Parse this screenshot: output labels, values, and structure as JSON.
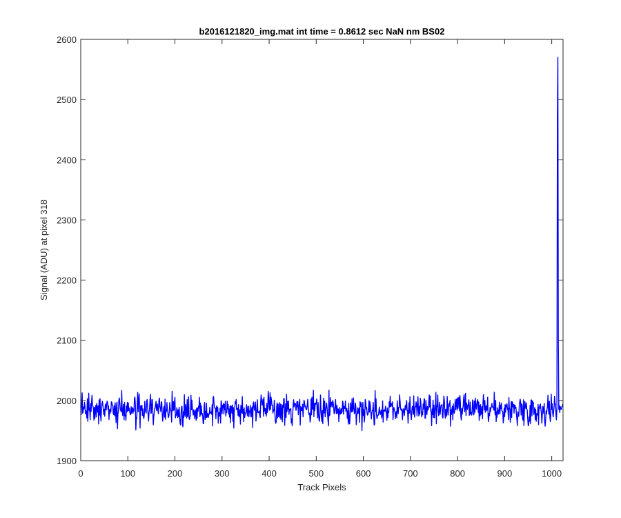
{
  "chart_data": {
    "type": "line",
    "title": "b2016121820_img.mat int time = 0.8612 sec  NaN nm BS02",
    "xlabel": "Track Pixels",
    "ylabel": "Signal (ADU) at pixel 318",
    "xlim": [
      0,
      1024
    ],
    "ylim": [
      1900,
      2600
    ],
    "xticks": [
      0,
      100,
      200,
      300,
      400,
      500,
      600,
      700,
      800,
      900,
      1000
    ],
    "yticks": [
      1900,
      2000,
      2100,
      2200,
      2300,
      2400,
      2500,
      2600
    ],
    "grid": false,
    "legend": "none",
    "series": [
      {
        "color": "#0000ff",
        "x": [
          0,
          1011,
          1012,
          1013,
          1014,
          1015,
          1016,
          1017,
          1018,
          1020,
          1024
        ],
        "y": [
          1985,
          1988,
          2470,
          2570,
          2100,
          1985,
          1992,
          1980,
          1990,
          1985,
          1995
        ],
        "noise": {
          "x_start": 0,
          "x_end": 1011,
          "baseline": 1985,
          "min": 1943,
          "max": 2017
        }
      }
    ]
  }
}
